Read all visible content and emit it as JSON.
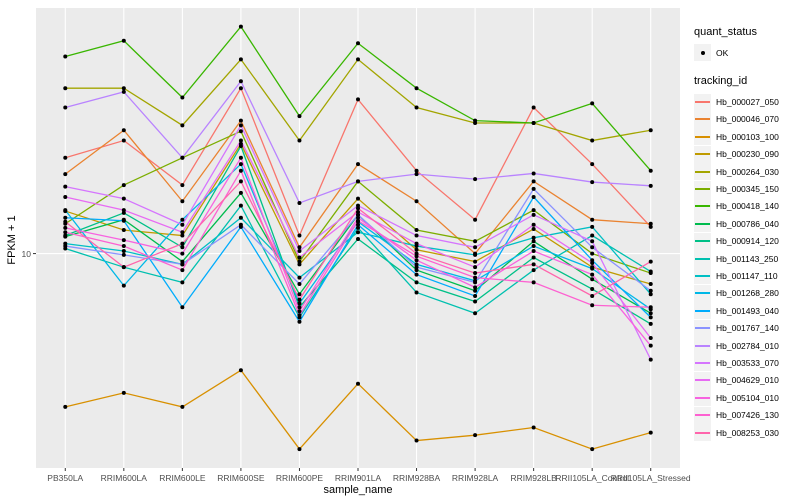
{
  "legend": {
    "quant_title": "quant_status",
    "ok_label": "OK",
    "tracking_title": "tracking_id"
  },
  "axes": {
    "x_title": "sample_name",
    "y_title": "FPKM + 1"
  },
  "style": {
    "panel_bg": "#ebebeb",
    "grid_color": "#ffffff",
    "tick_text_color": "#4d4d4d",
    "tick_mark_color": "#333333",
    "point_color": "#000000",
    "legend_key_bg": "#f2f2f2"
  },
  "chart_data": {
    "type": "line",
    "title": "",
    "xlabel": "sample_name",
    "ylabel": "FPKM + 1",
    "y_scale": "log10",
    "ylim": [
      1.9,
      67
    ],
    "y_ticks": [
      {
        "value": 10,
        "label": "10"
      }
    ],
    "grid": "white on grey panel, vertical line per category, horizontal at y=10",
    "legend_position": "right",
    "point_marker": "black dot (quant_status = OK)",
    "categories": [
      "PB350LA",
      "RRIM600LA",
      "RRIM600LE",
      "RRIM600SE",
      "RRIM600PE",
      "RRIM901LA",
      "RRIM928BA",
      "RRIM928LA",
      "RRIM928LB",
      "RRII105LA_Control",
      "RRII105LA_Stressed"
    ],
    "series": [
      {
        "name": "Hb_000027_050",
        "color": "#F8766D",
        "values": [
          21,
          24,
          17,
          36,
          11.5,
          33,
          19,
          13,
          31,
          20,
          12.3
        ]
      },
      {
        "name": "Hb_000046_070",
        "color": "#EA8331",
        "values": [
          18.5,
          26,
          15,
          28,
          10.5,
          20,
          15,
          10,
          17.5,
          13,
          12.6
        ]
      },
      {
        "name": "Hb_000103_100",
        "color": "#D89000",
        "values": [
          3.05,
          3.4,
          3.05,
          4.05,
          2.2,
          3.65,
          2.35,
          2.45,
          2.6,
          2.2,
          2.5
        ]
      },
      {
        "name": "Hb_000230_090",
        "color": "#C09B00",
        "values": [
          13.9,
          12,
          11.5,
          23.4,
          9.2,
          15.3,
          10.3,
          9.4,
          12.1,
          9.0,
          7.9
        ]
      },
      {
        "name": "Hb_000264_030",
        "color": "#A3A500",
        "values": [
          36,
          36,
          27,
          45,
          24,
          45,
          31,
          27.5,
          27.5,
          24,
          26
        ]
      },
      {
        "name": "Hb_000345_150",
        "color": "#7CAE00",
        "values": [
          12.6,
          17,
          21,
          25.8,
          9.4,
          17.5,
          12,
          11,
          14,
          10,
          8.6
        ]
      },
      {
        "name": "Hb_000418_140",
        "color": "#39B600",
        "values": [
          46,
          52,
          33.5,
          58,
          29,
          51,
          36,
          28,
          27.5,
          32,
          19
        ]
      },
      {
        "name": "Hb_000786_040",
        "color": "#00BB4E",
        "values": [
          11.4,
          13,
          9.4,
          16,
          7.3,
          13.5,
          8.8,
          7.5,
          11,
          8.2,
          6.3
        ]
      },
      {
        "name": "Hb_000914_120",
        "color": "#00C087",
        "values": [
          11.5,
          13.7,
          10.5,
          23,
          6.6,
          11.2,
          8.0,
          6.9,
          9.7,
          7.6,
          5.8
        ]
      },
      {
        "name": "Hb_001143_250",
        "color": "#00C0AF",
        "values": [
          10.4,
          9.0,
          8.0,
          14.5,
          6.1,
          12.2,
          7.4,
          6.3,
          8.8,
          11.5,
          8.7
        ]
      },
      {
        "name": "Hb_001147_110",
        "color": "#00BFC4",
        "values": [
          10.8,
          10.2,
          9.2,
          13.2,
          8.3,
          11.8,
          10.6,
          9.9,
          11.3,
          12.3,
          7.3
        ]
      },
      {
        "name": "Hb_001268_280",
        "color": "#00B8E7",
        "values": [
          14,
          7.8,
          13,
          20,
          6.8,
          12.8,
          9.2,
          8.1,
          10.6,
          8.9,
          6.5
        ]
      },
      {
        "name": "Hb_001493_040",
        "color": "#00ACFC",
        "values": [
          13.2,
          12.9,
          6.6,
          12.3,
          5.9,
          12.5,
          8.5,
          7.2,
          15.5,
          9.5,
          6.1
        ]
      },
      {
        "name": "Hb_001767_140",
        "color": "#8B93FF",
        "values": [
          10.6,
          9.9,
          9.2,
          12.5,
          7.9,
          13.5,
          9.0,
          8.0,
          16.5,
          10.5,
          7.5
        ]
      },
      {
        "name": "Hb_002784_010",
        "color": "#B983FF",
        "values": [
          31,
          35,
          21,
          38,
          14.8,
          17.5,
          18.5,
          17.8,
          18.6,
          17.4,
          16.9
        ]
      },
      {
        "name": "Hb_003533_070",
        "color": "#D575FE",
        "values": [
          16.8,
          15.3,
          12.5,
          27,
          10.2,
          14.5,
          11.5,
          10.5,
          13.5,
          11.0,
          4.4
        ]
      },
      {
        "name": "Hb_004629_010",
        "color": "#E76BF3",
        "values": [
          15.5,
          14,
          11.8,
          24,
          9.7,
          13.8,
          10.8,
          9.0,
          12.5,
          9.3,
          5.2
        ]
      },
      {
        "name": "Hb_005104_010",
        "color": "#F763E0",
        "values": [
          12.2,
          11.1,
          10.0,
          21,
          6.4,
          13.2,
          9.5,
          7.7,
          10.2,
          8.5,
          4.9
        ]
      },
      {
        "name": "Hb_007426_130",
        "color": "#FD61D1",
        "values": [
          11.8,
          10.6,
          8.8,
          19,
          6.2,
          12.9,
          9.8,
          8.3,
          8.0,
          6.7,
          6.6
        ]
      },
      {
        "name": "Hb_008253_030",
        "color": "#FF65AC",
        "values": [
          12.8,
          9.0,
          10.8,
          17.5,
          7.0,
          14.2,
          10.0,
          8.6,
          9.2,
          7.2,
          9.4
        ]
      }
    ]
  }
}
